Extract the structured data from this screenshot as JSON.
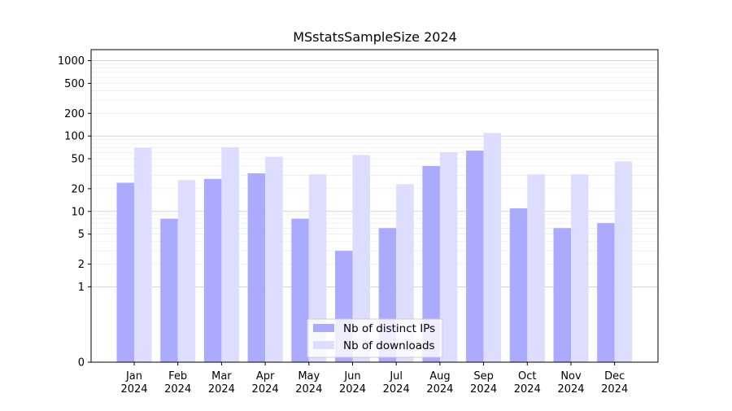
{
  "chart_data": {
    "type": "bar",
    "title": "MSstatsSampleSize 2024",
    "xlabel": "",
    "ylabel": "",
    "yscale": "symlog",
    "ylim": [
      0,
      1400
    ],
    "grid": true,
    "legend_position": "bottom-center",
    "categories": [
      [
        "Jan",
        "2024"
      ],
      [
        "Feb",
        "2024"
      ],
      [
        "Mar",
        "2024"
      ],
      [
        "Apr",
        "2024"
      ],
      [
        "May",
        "2024"
      ],
      [
        "Jun",
        "2024"
      ],
      [
        "Jul",
        "2024"
      ],
      [
        "Aug",
        "2024"
      ],
      [
        "Sep",
        "2024"
      ],
      [
        "Oct",
        "2024"
      ],
      [
        "Nov",
        "2024"
      ],
      [
        "Dec",
        "2024"
      ]
    ],
    "y_ticks": [
      {
        "value": 0,
        "label": "0"
      },
      {
        "value": 1,
        "label": "1"
      },
      {
        "value": 2,
        "label": "2"
      },
      {
        "value": 5,
        "label": "5"
      },
      {
        "value": 10,
        "label": "10"
      },
      {
        "value": 20,
        "label": "20"
      },
      {
        "value": 50,
        "label": "50"
      },
      {
        "value": 100,
        "label": "100"
      },
      {
        "value": 200,
        "label": "200"
      },
      {
        "value": 500,
        "label": "500"
      },
      {
        "value": 1000,
        "label": "1000"
      }
    ],
    "series": [
      {
        "name": "Nb of distinct IPs",
        "color": "#aaaaff",
        "values": [
          24,
          8,
          27,
          32,
          8,
          3,
          6,
          40,
          64,
          11,
          6,
          7
        ]
      },
      {
        "name": "Nb of downloads",
        "color": "#ddddff",
        "values": [
          70,
          26,
          71,
          53,
          31,
          56,
          23,
          61,
          110,
          31,
          31,
          46
        ]
      }
    ]
  }
}
